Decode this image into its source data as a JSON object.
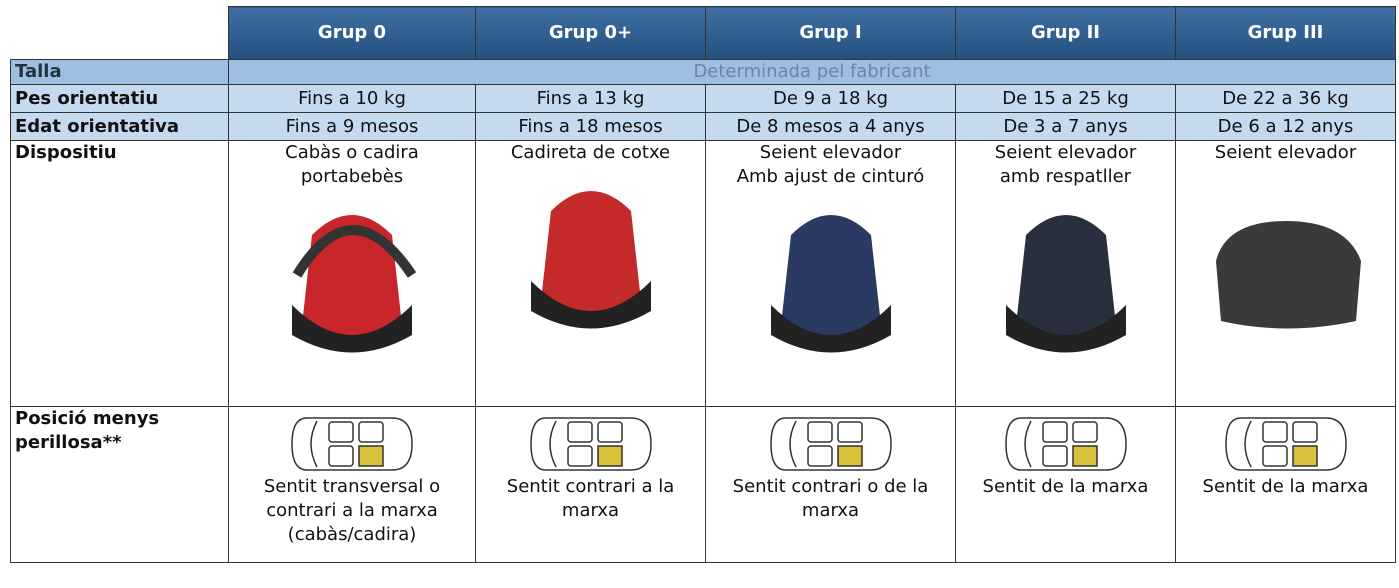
{
  "table": {
    "header": [
      "Grup 0",
      "Grup 0+",
      "Grup I",
      "Grup II",
      "Grup III"
    ],
    "rows": [
      {
        "label": "Talla",
        "cells": [
          "Determinada pel fabricant"
        ]
      },
      {
        "label": "Pes orientatiu",
        "cells": [
          "Fins a 10 kg",
          "Fins a 13 kg",
          "De 9 a 18 kg",
          "De 15 a 25 kg",
          "De 22 a 36 kg"
        ]
      },
      {
        "label": "Edat orientativa",
        "cells": [
          "Fins a 9 mesos",
          "Fins a 18 mesos",
          "De 8 mesos a 4 anys",
          "De 3 a 7 anys",
          "De 6 a 12 anys"
        ]
      },
      {
        "label": "Dispositiu",
        "cells": [
          [
            "Cabàs o cadira",
            "portabebès"
          ],
          [
            "Cadireta de cotxe"
          ],
          [
            "Seient elevador",
            "Amb ajust de cinturó"
          ],
          [
            "Seient elevador",
            "amb respatller"
          ],
          [
            "Seient elevador"
          ]
        ]
      },
      {
        "label": [
          "Posició menys",
          "perillosa**"
        ],
        "cells": [
          [
            "Sentit transversal o",
            "contrari a la marxa",
            "(cabàs/cadira)"
          ],
          [
            "Sentit contrari a la",
            "marxa"
          ],
          [
            "Sentit contrari o de la",
            "marxa"
          ],
          [
            "Sentit de la marxa"
          ],
          [
            "Sentit de la marxa"
          ]
        ]
      }
    ]
  }
}
